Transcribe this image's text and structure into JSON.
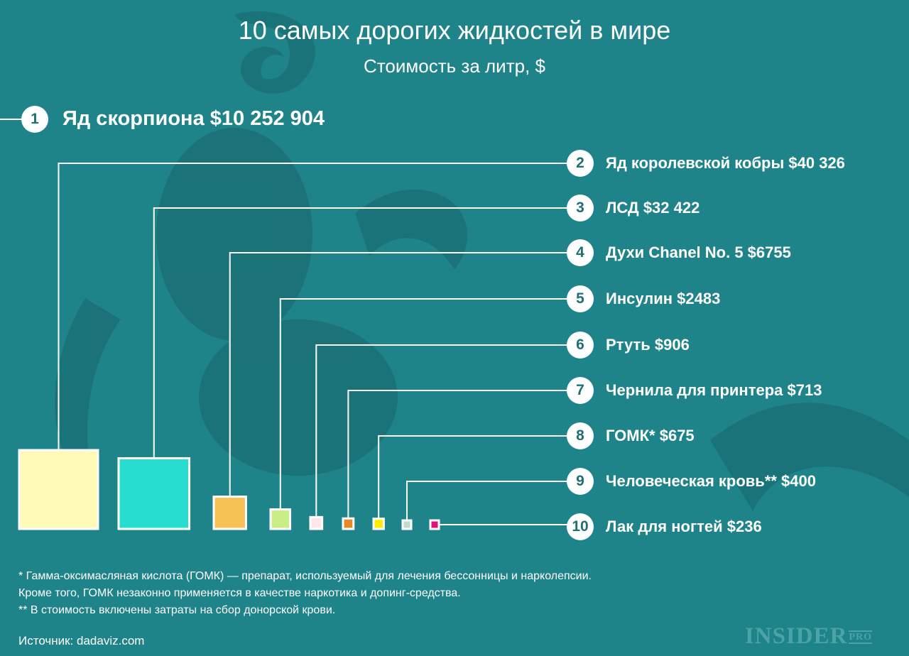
{
  "title": "10 самых дорогих жидкостей в мире",
  "subtitle": "Стоимость за литр, $",
  "chart_data": {
    "type": "proportional-squares",
    "title": "10 самых дорогих жидкостей в мире",
    "subtitle": "Стоимость за литр, $",
    "items": [
      {
        "rank": "1",
        "label": "Яд скорпиона $10 252 904",
        "name": "Яд скорпиона",
        "value": 10252904,
        "color": ""
      },
      {
        "rank": "2",
        "label": "Яд королевской кобры $40 326",
        "name": "Яд королевской кобры",
        "value": 40326,
        "color": "#fffab8"
      },
      {
        "rank": "3",
        "label": "ЛСД $32 422",
        "name": "ЛСД",
        "value": 32422,
        "color": "#27ddd0"
      },
      {
        "rank": "4",
        "label": "Духи Chanel No. 5 $6755",
        "name": "Духи Chanel No. 5",
        "value": 6755,
        "color": "#f7c255"
      },
      {
        "rank": "5",
        "label": "Инсулин $2483",
        "name": "Инсулин",
        "value": 2483,
        "color": "#c9ee86"
      },
      {
        "rank": "6",
        "label": "Ртуть $906",
        "name": "Ртуть",
        "value": 906,
        "color": "#fde6ec"
      },
      {
        "rank": "7",
        "label": "Чернила для принтера $713",
        "name": "Чернила для принтера",
        "value": 713,
        "color": "#e5882a"
      },
      {
        "rank": "8",
        "label": "ГОМК* $675",
        "name": "ГОМК*",
        "value": 675,
        "color": "#ffee00"
      },
      {
        "rank": "9",
        "label": "Человеческая кровь** $400",
        "name": "Человеческая кровь**",
        "value": 400,
        "color": "#bfdccb"
      },
      {
        "rank": "10",
        "label": "Лак для ногтей $236",
        "name": "Лак для ногтей",
        "value": 236,
        "color": "#e0107f"
      }
    ]
  },
  "notes": [
    "* Гамма-оксимасляная кислота (ГОМК) — препарат, используемый для лечения бессонницы и нарколепсии.",
    "Кроме того, ГОМК незаконно применяется в качестве наркотика и допинг-средства.",
    "** В стоимость включены затраты на сбор донорской крови."
  ],
  "source": "Источник: dadaviz.com",
  "logo": {
    "main": "INSIDER",
    "sup": "PRO"
  },
  "colors": {
    "background": "#1f8489",
    "line": "#ffffff"
  }
}
